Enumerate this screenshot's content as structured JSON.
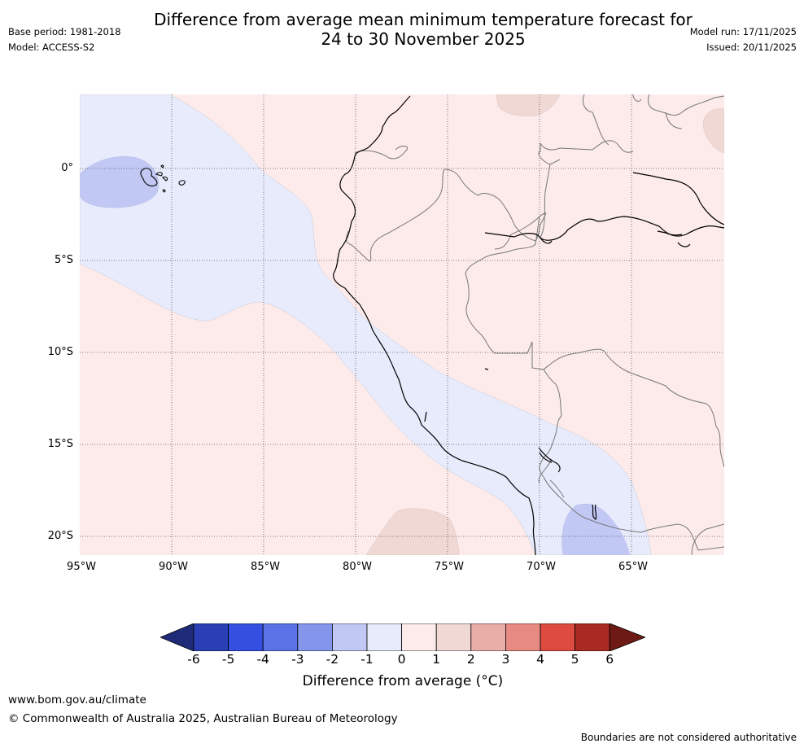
{
  "header": {
    "title_line1": "Difference from average mean minimum temperature forecast for",
    "title_line2": "24 to 30 November 2025",
    "base_period": "Base period: 1981-2018",
    "model": "Model: ACCESS-S2",
    "model_run": "Model run: 17/11/2025",
    "issued": "Issued: 20/11/2025"
  },
  "map": {
    "lat_labels": [
      "0°",
      "5°S",
      "10°S",
      "15°S",
      "20°S"
    ],
    "lon_labels": [
      "95°W",
      "90°W",
      "85°W",
      "80°W",
      "75°W",
      "70°W",
      "65°W"
    ],
    "extent": {
      "lon_min": -95,
      "lon_max": -60,
      "lat_min": -21,
      "lat_max": 4
    },
    "fill_colors": {
      "neg2_neg1": "#c2c8f4",
      "neg1_0": "#e7ebfb",
      "zero_1": "#fcebea",
      "one_2": "#f0d8d5"
    }
  },
  "colorbar": {
    "ticks": [
      "-6",
      "-5",
      "-4",
      "-3",
      "-2",
      "-1",
      "0",
      "1",
      "2",
      "3",
      "4",
      "5",
      "6"
    ],
    "colors": [
      "#1f2a78",
      "#2a3fb6",
      "#3350e0",
      "#5b72e6",
      "#8496ec",
      "#c2c8f4",
      "#e7ebfb",
      "#fcebea",
      "#f0d8d5",
      "#eaaea8",
      "#e68a82",
      "#dd4a40",
      "#a92a22",
      "#6e1a14"
    ],
    "label": "Difference from average (°C)"
  },
  "footer": {
    "url": "www.bom.gov.au/climate",
    "copyright": "© Commonwealth of Australia 2025, Australian Bureau of Meteorology",
    "disclaimer": "Boundaries are not considered authoritative"
  }
}
